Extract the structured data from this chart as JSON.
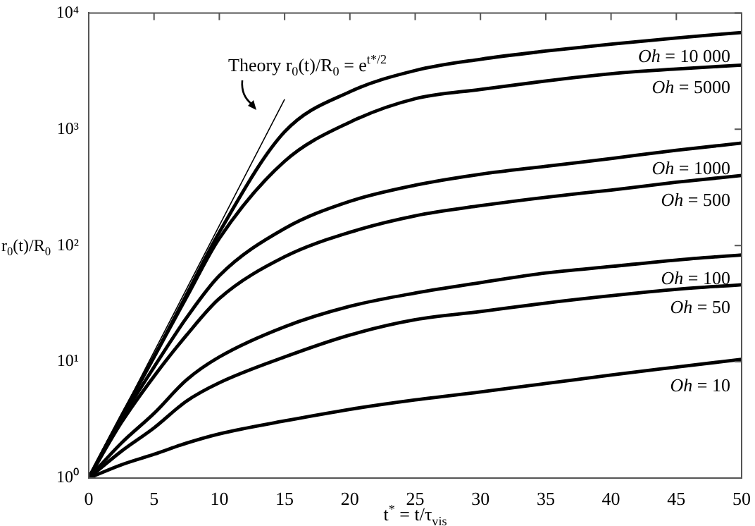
{
  "chart_data": {
    "type": "line",
    "xlabel": "t$^{*}$ = t/τ$_{vis}$",
    "ylabel": "r$_{0}$(t)/R$_{0}$",
    "log": "y",
    "xlim": [
      0,
      50
    ],
    "xticks": [
      0,
      5,
      10,
      15,
      20,
      25,
      30,
      35,
      40,
      45,
      50
    ],
    "ylim": [
      1,
      10000
    ],
    "yticks": [
      {
        "value": 1,
        "label": "10⁰"
      },
      {
        "value": 10,
        "label": "10¹"
      },
      {
        "value": 100,
        "label": "10²"
      },
      {
        "value": 1000,
        "label": "10³"
      },
      {
        "value": 10000,
        "label": "10⁴"
      }
    ],
    "grid": false,
    "legend": false,
    "marker": "none",
    "line_style": "solid",
    "x": [
      0,
      2.5,
      5,
      7.5,
      10,
      15,
      20,
      25,
      30,
      35,
      40,
      45,
      50
    ],
    "series": [
      {
        "name": "Oh = 10 000",
        "color": "#000000",
        "values": [
          1,
          3.4,
          11,
          38,
          130,
          950,
          2100,
          3200,
          4000,
          4700,
          5400,
          6100,
          6800
        ]
      },
      {
        "name": "Oh = 5000",
        "color": "#000000",
        "values": [
          1,
          3.4,
          11,
          36,
          115,
          530,
          1150,
          1830,
          2200,
          2600,
          3000,
          3300,
          3560
        ]
      },
      {
        "name": "Oh = 1000",
        "color": "#000000",
        "values": [
          1,
          3.2,
          9,
          24,
          55,
          140,
          240,
          330,
          410,
          480,
          560,
          660,
          760
        ]
      },
      {
        "name": "Oh = 500",
        "color": "#000000",
        "values": [
          1,
          3,
          7.5,
          17,
          35,
          80,
          130,
          180,
          220,
          260,
          300,
          350,
          400
        ]
      },
      {
        "name": "Oh = 100",
        "color": "#000000",
        "values": [
          1,
          2,
          3.6,
          7,
          11,
          20,
          30,
          39,
          48,
          58,
          66,
          75,
          83
        ]
      },
      {
        "name": "Oh = 50",
        "color": "#000000",
        "values": [
          1,
          1.7,
          2.7,
          4.6,
          6.6,
          11,
          17,
          23,
          27,
          32,
          37,
          42,
          46
        ]
      },
      {
        "name": "Oh = 10",
        "color": "#000000",
        "values": [
          1,
          1.3,
          1.6,
          2,
          2.4,
          3.1,
          3.9,
          4.7,
          5.5,
          6.5,
          7.7,
          9,
          10.5
        ]
      },
      {
        "type": "line",
        "color": "#000000",
        "x": [
          0,
          15
        ],
        "values": [
          1,
          1808
        ]
      }
    ],
    "annotations": [
      {
        "text": "Theory r$_{0}$(t)/R$_{0}$ = e$^{t*/2}$",
        "x": 15,
        "y": 1808
      }
    ]
  }
}
